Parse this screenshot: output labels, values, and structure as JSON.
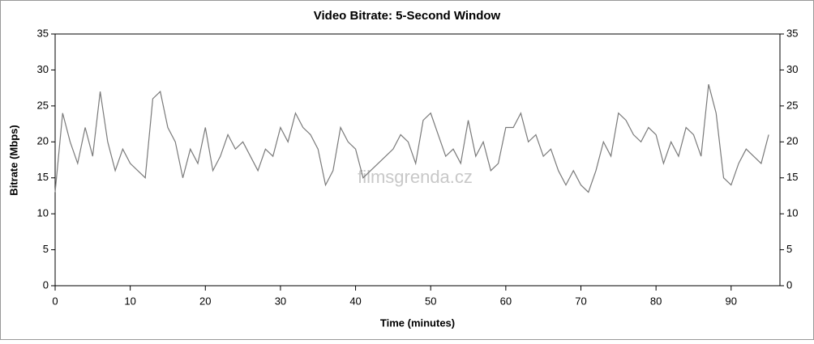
{
  "chart_data": {
    "type": "line",
    "title": "Video Bitrate: 5-Second Window",
    "xlabel": "Time (minutes)",
    "ylabel": "Bitrate (Mbps)",
    "watermark": "filmsgrenda.cz",
    "x": [
      0,
      1,
      2,
      3,
      4,
      5,
      6,
      7,
      8,
      9,
      10,
      11,
      12,
      13,
      14,
      15,
      16,
      17,
      18,
      19,
      20,
      21,
      22,
      23,
      24,
      25,
      26,
      27,
      28,
      29,
      30,
      31,
      32,
      33,
      34,
      35,
      36,
      37,
      38,
      39,
      40,
      41,
      42,
      43,
      44,
      45,
      46,
      47,
      48,
      49,
      50,
      51,
      52,
      53,
      54,
      55,
      56,
      57,
      58,
      59,
      60,
      61,
      62,
      63,
      64,
      65,
      66,
      67,
      68,
      69,
      70,
      71,
      72,
      73,
      74,
      75,
      76,
      77,
      78,
      79,
      80,
      81,
      82,
      83,
      84,
      85,
      86,
      87,
      88,
      89,
      90,
      91,
      92,
      93,
      94,
      95
    ],
    "series": [
      {
        "name": "Bitrate",
        "color": "#7a7a7a",
        "values": [
          13,
          24,
          20,
          17,
          22,
          18,
          27,
          20,
          16,
          19,
          17,
          16,
          15,
          26,
          27,
          22,
          20,
          15,
          19,
          17,
          22,
          16,
          18,
          21,
          19,
          20,
          18,
          16,
          19,
          18,
          22,
          20,
          24,
          22,
          21,
          19,
          14,
          16,
          22,
          20,
          19,
          15,
          16,
          17,
          18,
          19,
          21,
          20,
          17,
          23,
          24,
          21,
          18,
          19,
          17,
          23,
          18,
          20,
          16,
          17,
          22,
          22,
          24,
          20,
          21,
          18,
          19,
          16,
          14,
          16,
          14,
          13,
          16,
          20,
          18,
          24,
          23,
          21,
          20,
          22,
          21,
          17,
          20,
          18,
          22,
          21,
          18,
          28,
          24,
          15,
          14,
          17,
          19,
          18,
          17,
          21
        ]
      }
    ],
    "xlim": [
      0,
      96.5
    ],
    "ylim": [
      0,
      35
    ],
    "xticks": [
      0,
      10,
      20,
      30,
      40,
      50,
      60,
      70,
      80,
      90
    ],
    "yticks": [
      0,
      5,
      10,
      15,
      20,
      25,
      30,
      35
    ]
  }
}
